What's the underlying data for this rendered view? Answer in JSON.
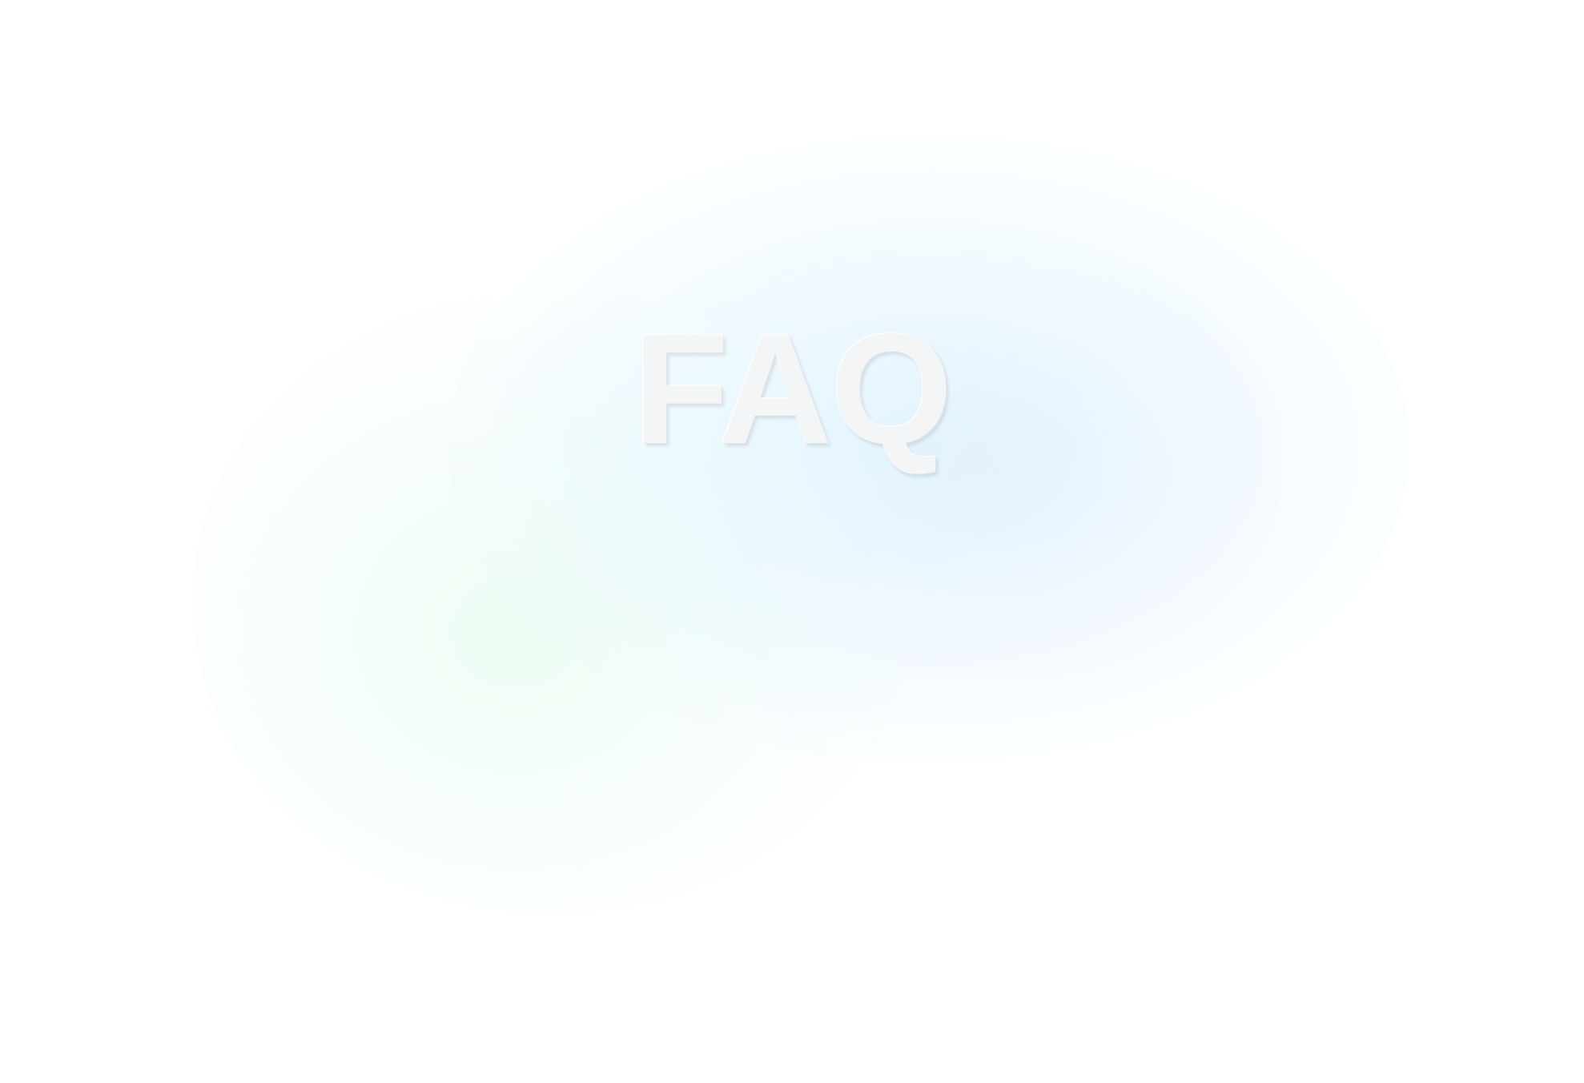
{
  "page": {
    "title": "FAQ",
    "background_color": "#ffffff",
    "title_color": "#f4f5f7",
    "blob_colors": {
      "blue": "#d6f4fd",
      "green": "#e8fcf0",
      "violet": "#e8eefc"
    }
  }
}
